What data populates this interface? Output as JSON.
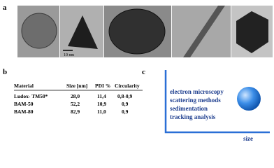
{
  "panels": {
    "a": "a",
    "b": "b",
    "c": "c"
  },
  "scale_bar": "10 nm",
  "table": {
    "header": [
      "Material",
      "Size [nm]",
      "PDI %",
      "Circularity"
    ],
    "rows": [
      [
        "Ludox- TM50*",
        "28,0",
        "11,4",
        "0,8-0,9"
      ],
      [
        "BAM-50",
        "52,2",
        "10,9",
        "0,9"
      ],
      [
        "BAM-80",
        "82,9",
        "11,0",
        "0,9"
      ]
    ]
  },
  "methods": [
    "electron microscopy",
    "scattering methods",
    "sedimentation",
    "tracking analysis"
  ],
  "axis_label": "size"
}
